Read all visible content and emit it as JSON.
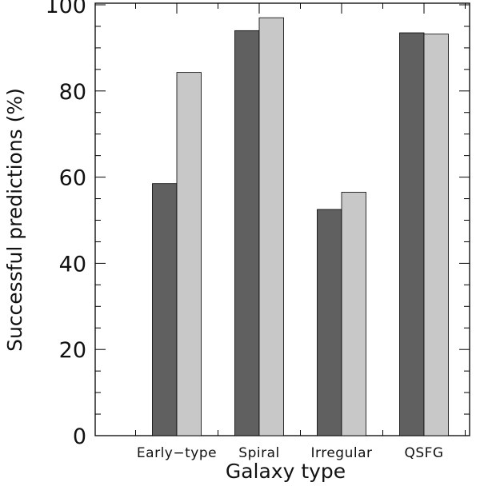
{
  "chart_data": {
    "type": "bar",
    "title": "",
    "xlabel": "Galaxy type",
    "ylabel": "Successful predictions (%)",
    "ylim": [
      0,
      100
    ],
    "yticks": [
      "0",
      "20",
      "40",
      "60",
      "80",
      "100"
    ],
    "categories": [
      "Early−type",
      "Spiral",
      "Irregular",
      "QSFG"
    ],
    "series": [
      {
        "name": "series-1",
        "color": "#606060",
        "values": [
          58.5,
          94,
          52.5,
          93.5
        ]
      },
      {
        "name": "series-2",
        "color": "#c8c8c8",
        "values": [
          84.3,
          97,
          56.5,
          93.2
        ]
      }
    ],
    "grid": false,
    "legend": "none"
  }
}
